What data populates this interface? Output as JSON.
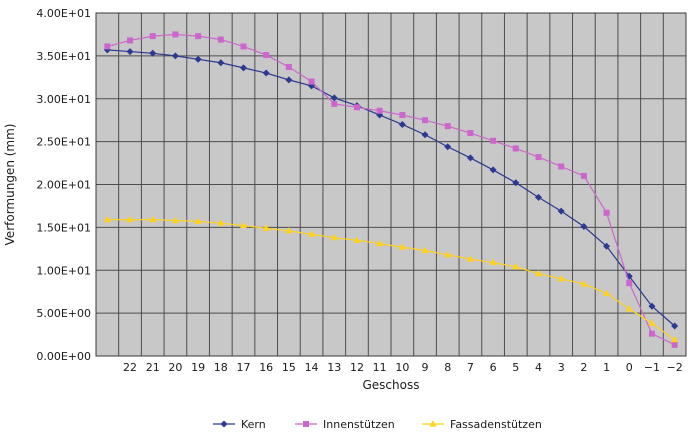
{
  "chart_data": {
    "type": "line",
    "title": "",
    "xlabel": "Geschoss",
    "ylabel": "Verformungen (mm)",
    "ylim": [
      0,
      40
    ],
    "grid": true,
    "legend_position": "bottom",
    "plot_background": "#c8c8c8",
    "categories": [
      "",
      "22",
      "21",
      "20",
      "19",
      "18",
      "17",
      "16",
      "15",
      "14",
      "13",
      "12",
      "11",
      "10",
      "9",
      "8",
      "7",
      "6",
      "5",
      "4",
      "3",
      "2",
      "1",
      "0",
      "−1",
      "−2"
    ],
    "y_ticks": [
      {
        "value": 0,
        "label": "0.00E+00"
      },
      {
        "value": 5,
        "label": "5.00E+00"
      },
      {
        "value": 10,
        "label": "1.00E+01"
      },
      {
        "value": 15,
        "label": "1.50E+01"
      },
      {
        "value": 20,
        "label": "2.00E+01"
      },
      {
        "value": 25,
        "label": "2.50E+01"
      },
      {
        "value": 30,
        "label": "3.00E+01"
      },
      {
        "value": 35,
        "label": "3.50E+01"
      },
      {
        "value": 40,
        "label": "4.00E+01"
      }
    ],
    "series": [
      {
        "name": "Kern",
        "color": "#2b3990",
        "marker": "diamond",
        "values": [
          35.7,
          35.5,
          35.3,
          35.0,
          34.6,
          34.2,
          33.6,
          33.0,
          32.2,
          31.5,
          30.1,
          29.2,
          28.1,
          27.0,
          25.8,
          24.4,
          23.1,
          21.7,
          20.2,
          18.5,
          16.9,
          15.1,
          12.8,
          9.3,
          5.8,
          3.5
        ]
      },
      {
        "name": "Innenstützen",
        "color": "#cc66cc",
        "marker": "square",
        "values": [
          36.1,
          36.8,
          37.3,
          37.5,
          37.3,
          36.9,
          36.1,
          35.1,
          33.7,
          32.0,
          29.4,
          29.0,
          28.6,
          28.1,
          27.5,
          26.8,
          26.0,
          25.1,
          24.2,
          23.2,
          22.1,
          21.0,
          16.7,
          8.5,
          2.6,
          1.3
        ]
      },
      {
        "name": "Fassadenstützen",
        "color": "#ffd21f",
        "marker": "triangle",
        "values": [
          15.9,
          15.9,
          15.9,
          15.8,
          15.7,
          15.5,
          15.2,
          14.9,
          14.6,
          14.2,
          13.8,
          13.5,
          13.1,
          12.7,
          12.3,
          11.8,
          11.3,
          10.9,
          10.4,
          9.6,
          9.0,
          8.4,
          7.3,
          5.5,
          3.8,
          1.9
        ]
      }
    ]
  }
}
